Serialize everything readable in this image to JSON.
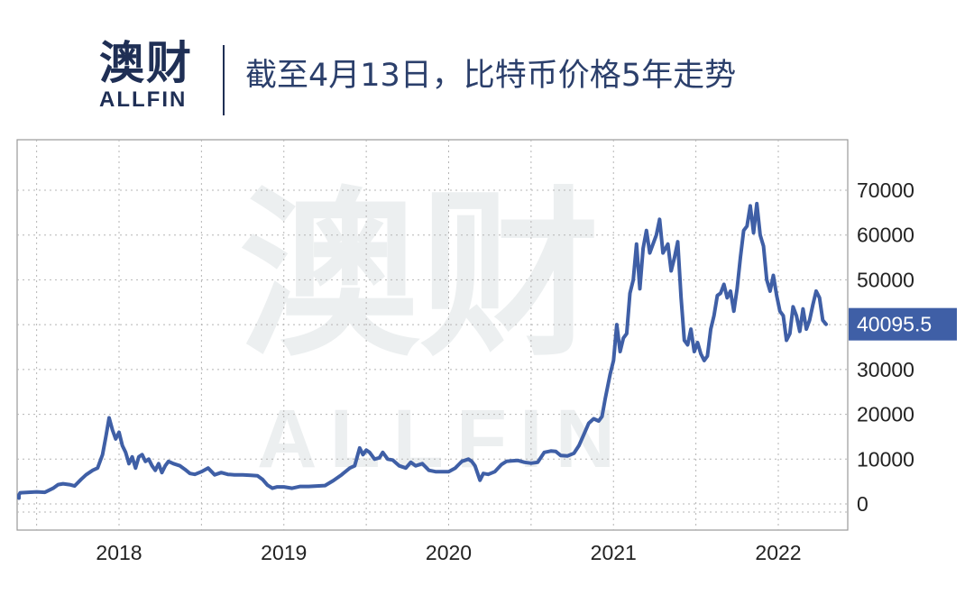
{
  "header": {
    "brand_cn": "澳财",
    "brand_en": "ALLFIN",
    "title": "截至4月13日，比特币价格5年走势"
  },
  "watermark": {
    "cn": "澳财",
    "en": "ALLFIN"
  },
  "colors": {
    "line": "#3f5fa6",
    "current_box": "#3f5fa6",
    "brand": "#1f2f55",
    "grid": "#bdbdbd"
  },
  "chart_data": {
    "type": "line",
    "title": "截至4月13日，比特币价格5年走势",
    "xlabel": "",
    "ylabel": "",
    "x_ticks": [
      "2018",
      "2019",
      "2020",
      "2021",
      "2022"
    ],
    "y_ticks": [
      "0",
      "10000",
      "20000",
      "30000",
      "40000",
      "50000",
      "60000",
      "70000"
    ],
    "ylim": [
      -3000,
      77000
    ],
    "xlim": [
      2017.3,
      2022.4
    ],
    "grid": true,
    "current_value_label": "40095.5",
    "current_value": 40095.5,
    "series": [
      {
        "points": [
          [
            2017.3,
            1300
          ],
          [
            2017.35,
            2000
          ],
          [
            2017.4,
            2500
          ],
          [
            2017.45,
            2600
          ],
          [
            2017.5,
            2700
          ],
          [
            2017.55,
            2600
          ],
          [
            2017.6,
            3500
          ],
          [
            2017.63,
            4300
          ],
          [
            2017.66,
            4500
          ],
          [
            2017.7,
            4300
          ],
          [
            2017.73,
            4000
          ],
          [
            2017.77,
            5500
          ],
          [
            2017.8,
            6500
          ],
          [
            2017.84,
            7500
          ],
          [
            2017.87,
            8000
          ],
          [
            2017.9,
            11000
          ],
          [
            2017.92,
            15000
          ],
          [
            2017.94,
            19200
          ],
          [
            2017.96,
            16500
          ],
          [
            2017.98,
            14500
          ],
          [
            2018.0,
            16000
          ],
          [
            2018.02,
            13000
          ],
          [
            2018.04,
            11500
          ],
          [
            2018.06,
            9000
          ],
          [
            2018.08,
            10500
          ],
          [
            2018.1,
            8000
          ],
          [
            2018.12,
            10500
          ],
          [
            2018.14,
            11000
          ],
          [
            2018.16,
            9500
          ],
          [
            2018.18,
            10000
          ],
          [
            2018.2,
            8500
          ],
          [
            2018.22,
            7500
          ],
          [
            2018.24,
            9000
          ],
          [
            2018.26,
            7000
          ],
          [
            2018.28,
            8500
          ],
          [
            2018.3,
            9500
          ],
          [
            2018.33,
            9000
          ],
          [
            2018.37,
            8500
          ],
          [
            2018.4,
            7700
          ],
          [
            2018.43,
            6800
          ],
          [
            2018.46,
            6600
          ],
          [
            2018.5,
            7200
          ],
          [
            2018.54,
            8000
          ],
          [
            2018.58,
            6500
          ],
          [
            2018.62,
            7000
          ],
          [
            2018.66,
            6600
          ],
          [
            2018.7,
            6500
          ],
          [
            2018.75,
            6500
          ],
          [
            2018.8,
            6400
          ],
          [
            2018.84,
            6300
          ],
          [
            2018.87,
            5500
          ],
          [
            2018.9,
            4200
          ],
          [
            2018.93,
            3500
          ],
          [
            2018.96,
            3800
          ],
          [
            2019.0,
            3800
          ],
          [
            2019.05,
            3500
          ],
          [
            2019.1,
            3900
          ],
          [
            2019.15,
            3900
          ],
          [
            2019.2,
            4000
          ],
          [
            2019.25,
            4100
          ],
          [
            2019.3,
            5200
          ],
          [
            2019.35,
            6500
          ],
          [
            2019.4,
            8000
          ],
          [
            2019.43,
            8500
          ],
          [
            2019.46,
            12500
          ],
          [
            2019.48,
            11000
          ],
          [
            2019.5,
            12000
          ],
          [
            2019.52,
            11500
          ],
          [
            2019.55,
            10000
          ],
          [
            2019.58,
            10300
          ],
          [
            2019.6,
            11500
          ],
          [
            2019.63,
            10000
          ],
          [
            2019.66,
            9800
          ],
          [
            2019.7,
            8500
          ],
          [
            2019.74,
            8000
          ],
          [
            2019.77,
            9300
          ],
          [
            2019.8,
            8500
          ],
          [
            2019.84,
            9000
          ],
          [
            2019.88,
            7500
          ],
          [
            2019.92,
            7200
          ],
          [
            2019.96,
            7200
          ],
          [
            2020.0,
            7200
          ],
          [
            2020.04,
            8000
          ],
          [
            2020.08,
            9500
          ],
          [
            2020.12,
            10000
          ],
          [
            2020.14,
            9500
          ],
          [
            2020.16,
            8500
          ],
          [
            2020.19,
            5300
          ],
          [
            2020.21,
            6800
          ],
          [
            2020.24,
            6600
          ],
          [
            2020.28,
            7200
          ],
          [
            2020.32,
            8800
          ],
          [
            2020.35,
            9500
          ],
          [
            2020.38,
            9600
          ],
          [
            2020.42,
            9700
          ],
          [
            2020.46,
            9300
          ],
          [
            2020.5,
            9100
          ],
          [
            2020.54,
            9300
          ],
          [
            2020.58,
            11500
          ],
          [
            2020.62,
            11800
          ],
          [
            2020.65,
            11700
          ],
          [
            2020.68,
            10800
          ],
          [
            2020.72,
            10700
          ],
          [
            2020.76,
            11300
          ],
          [
            2020.79,
            13000
          ],
          [
            2020.82,
            15500
          ],
          [
            2020.85,
            18000
          ],
          [
            2020.88,
            19000
          ],
          [
            2020.91,
            18500
          ],
          [
            2020.93,
            19500
          ],
          [
            2020.95,
            23500
          ],
          [
            2020.98,
            29000
          ],
          [
            2021.0,
            32000
          ],
          [
            2021.02,
            40000
          ],
          [
            2021.04,
            34000
          ],
          [
            2021.06,
            37000
          ],
          [
            2021.08,
            38000
          ],
          [
            2021.1,
            47000
          ],
          [
            2021.12,
            50000
          ],
          [
            2021.14,
            58000
          ],
          [
            2021.16,
            48000
          ],
          [
            2021.18,
            57000
          ],
          [
            2021.2,
            61000
          ],
          [
            2021.22,
            56000
          ],
          [
            2021.24,
            58000
          ],
          [
            2021.26,
            60000
          ],
          [
            2021.28,
            63500
          ],
          [
            2021.3,
            56000
          ],
          [
            2021.33,
            58000
          ],
          [
            2021.35,
            52000
          ],
          [
            2021.37,
            55000
          ],
          [
            2021.39,
            58500
          ],
          [
            2021.41,
            46000
          ],
          [
            2021.43,
            36500
          ],
          [
            2021.45,
            35500
          ],
          [
            2021.47,
            39000
          ],
          [
            2021.49,
            34000
          ],
          [
            2021.51,
            36000
          ],
          [
            2021.53,
            33500
          ],
          [
            2021.55,
            32000
          ],
          [
            2021.57,
            33000
          ],
          [
            2021.59,
            39000
          ],
          [
            2021.61,
            42000
          ],
          [
            2021.63,
            46500
          ],
          [
            2021.65,
            47000
          ],
          [
            2021.67,
            49000
          ],
          [
            2021.69,
            46000
          ],
          [
            2021.71,
            47500
          ],
          [
            2021.73,
            43000
          ],
          [
            2021.75,
            48000
          ],
          [
            2021.77,
            55000
          ],
          [
            2021.79,
            61000
          ],
          [
            2021.81,
            62000
          ],
          [
            2021.83,
            66500
          ],
          [
            2021.85,
            60500
          ],
          [
            2021.87,
            67000
          ],
          [
            2021.89,
            60000
          ],
          [
            2021.91,
            57500
          ],
          [
            2021.93,
            50000
          ],
          [
            2021.95,
            47500
          ],
          [
            2021.97,
            51000
          ],
          [
            2021.99,
            46500
          ],
          [
            2022.01,
            43000
          ],
          [
            2022.03,
            42000
          ],
          [
            2022.05,
            36500
          ],
          [
            2022.07,
            38000
          ],
          [
            2022.09,
            44000
          ],
          [
            2022.11,
            42000
          ],
          [
            2022.13,
            38500
          ],
          [
            2022.15,
            43500
          ],
          [
            2022.17,
            39000
          ],
          [
            2022.19,
            41000
          ],
          [
            2022.21,
            44500
          ],
          [
            2022.23,
            47500
          ],
          [
            2022.25,
            46000
          ],
          [
            2022.27,
            41000
          ],
          [
            2022.29,
            40095.5
          ]
        ]
      }
    ]
  }
}
